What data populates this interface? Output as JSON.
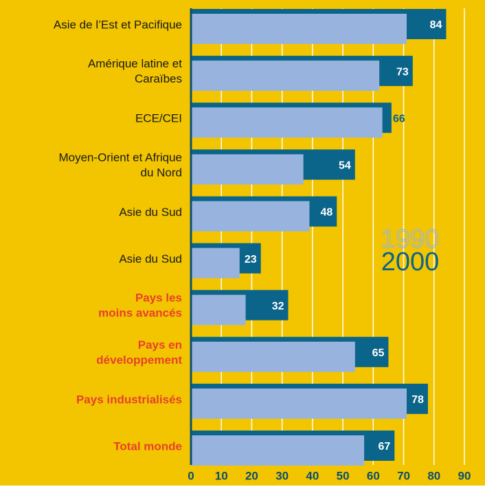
{
  "chart_data": {
    "type": "bar",
    "categories": [
      "Asie de l’Est et Pacifique",
      "Amérique latine et\nCaraïbes",
      "ECE/CEI",
      "Moyen-Orient et Afrique\ndu Nord",
      "Asie du Sud",
      "Asie du Sud",
      "Pays les\nmoins avancés",
      "Pays en\ndéveloppement",
      "Pays industrialisés",
      "Total monde"
    ],
    "category_colors": [
      "#1a1a1a",
      "#1a1a1a",
      "#1a1a1a",
      "#1a1a1a",
      "#1a1a1a",
      "#1a1a1a",
      "#e8412a",
      "#e8412a",
      "#e8412a",
      "#e8412a"
    ],
    "series": [
      {
        "name": "1990",
        "color": "#98b4de",
        "values": [
          71,
          62,
          63,
          37,
          39,
          16,
          18,
          54,
          71,
          57
        ]
      },
      {
        "name": "2000",
        "color": "#0b6489",
        "values": [
          84,
          73,
          66,
          54,
          48,
          23,
          32,
          65,
          78,
          67
        ]
      }
    ],
    "xlim": [
      0,
      90
    ],
    "xticks": [
      0,
      10,
      20,
      30,
      40,
      50,
      60,
      70,
      80,
      90
    ],
    "grid": true,
    "background": "#f2c500"
  }
}
